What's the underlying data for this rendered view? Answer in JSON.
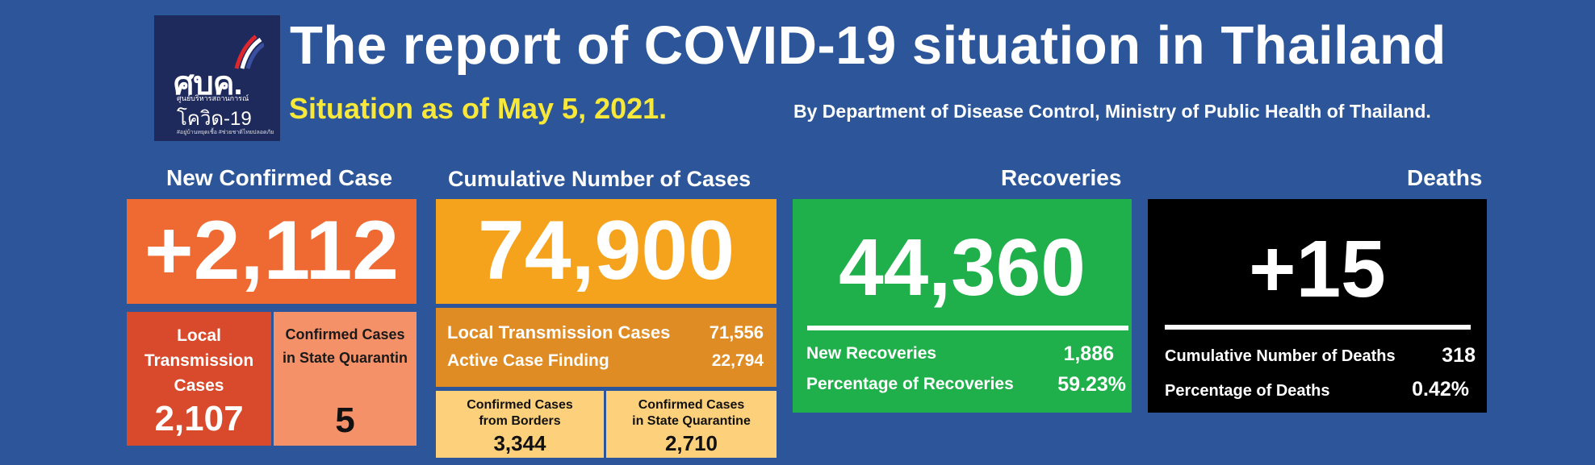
{
  "header": {
    "logo": {
      "line1": "ศบค.",
      "line2": "ศูนย์บริหารสถานการณ์",
      "line3": "โควิด-19",
      "line4": "#อยู่บ้านหยุดเชื้อ #ช่วยชาติไทยปลอดภัย"
    },
    "title": "The report of COVID-19 situation in Thailand",
    "subtitle": "Situation as of May 5, 2021.",
    "source": "By Department of Disease Control, Ministry of Public Health of Thailand."
  },
  "new_confirmed": {
    "heading": "New Confirmed Case",
    "value": "+2,112",
    "local_label_1": "Local",
    "local_label_2": "Transmission",
    "local_label_3": "Cases",
    "local_value": "2,107",
    "quarantine_label_1": "Confirmed Cases",
    "quarantine_label_2": "in State Quarantin",
    "quarantine_value": "5"
  },
  "cumulative": {
    "heading": "Cumulative Number of Cases",
    "value": "74,900",
    "local_label": "Local Transmission Cases",
    "local_value": "71,556",
    "active_label": "Active Case Finding",
    "active_value": "22,794",
    "borders_label_1": "Confirmed Cases",
    "borders_label_2": "from Borders",
    "borders_value": "3,344",
    "quarantine_label_1": "Confirmed Cases",
    "quarantine_label_2": "in State Quarantine",
    "quarantine_value": "2,710"
  },
  "recoveries": {
    "heading": "Recoveries",
    "value": "44,360",
    "new_label": "New Recoveries",
    "new_value": "1,886",
    "pct_label": "Percentage of Recoveries",
    "pct_value": "59.23%"
  },
  "deaths": {
    "heading": "Deaths",
    "value": "+15",
    "cum_label": "Cumulative Number of Deaths",
    "cum_value": "318",
    "pct_label": "Percentage of Deaths",
    "pct_value": "0.42%"
  },
  "colors": {
    "background": "#2c5699",
    "new_confirmed": "#ef6a32",
    "local_box": "#d84a2b",
    "quarantine_box": "#f59169",
    "cumulative": "#f5a31d",
    "cumulative_sub": "#e08c25",
    "cumulative_light": "#fdd07c",
    "recoveries": "#20b04b",
    "deaths": "#000000",
    "subtitle": "#f8e839"
  }
}
